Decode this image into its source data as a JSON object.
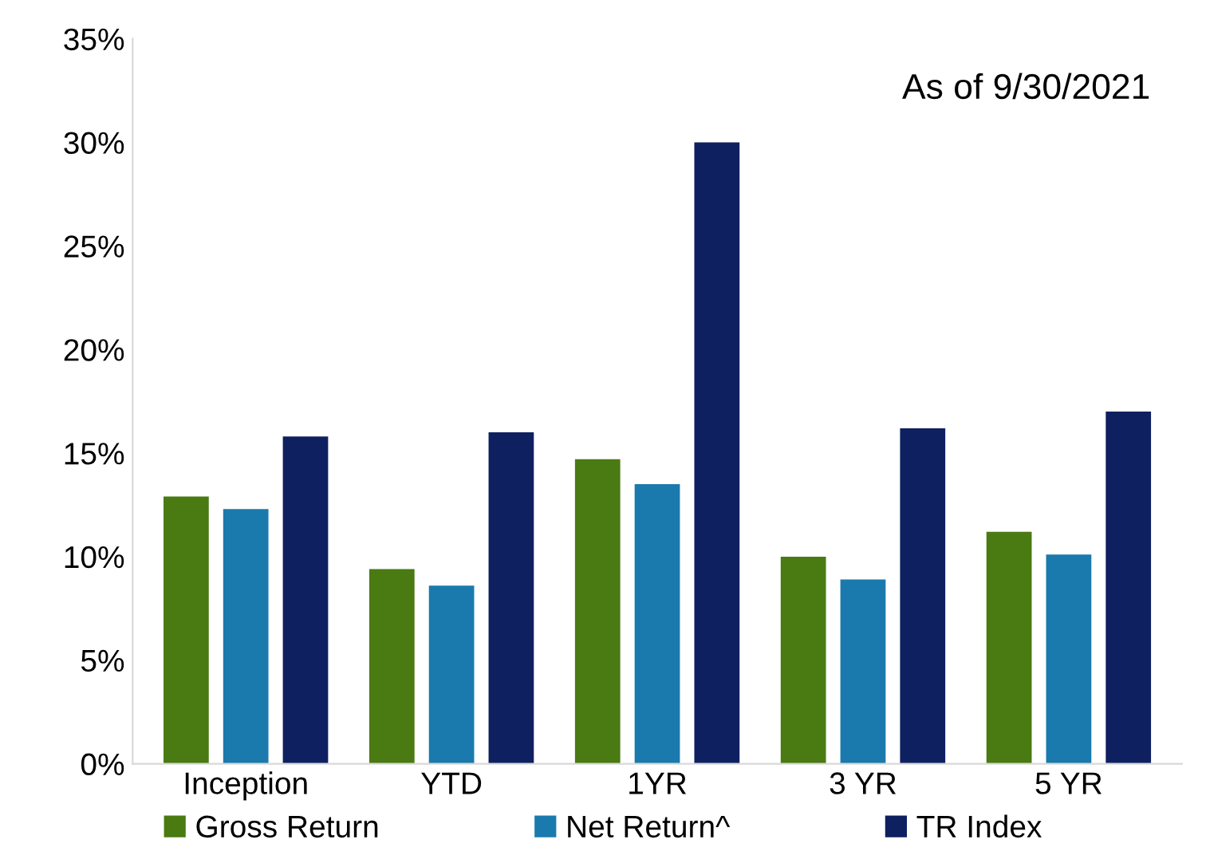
{
  "chart_data": {
    "type": "bar",
    "categories": [
      "Inception",
      "YTD",
      "1YR",
      "3 YR",
      "5 YR"
    ],
    "series": [
      {
        "name": "Gross Return",
        "color": "#4a7a12",
        "values": [
          12.9,
          9.4,
          14.7,
          10.0,
          11.2
        ]
      },
      {
        "name": "Net Return^",
        "color": "#1a7aad",
        "values": [
          12.3,
          8.6,
          13.5,
          8.9,
          10.1
        ]
      },
      {
        "name": "TR Index",
        "color": "#0f2060",
        "values": [
          15.8,
          16.0,
          30.0,
          16.2,
          17.0
        ]
      }
    ],
    "ylim": [
      0,
      35
    ],
    "yticks": [
      {
        "value": 0,
        "label": "0%"
      },
      {
        "value": 5,
        "label": "5%"
      },
      {
        "value": 10,
        "label": "10%"
      },
      {
        "value": 15,
        "label": "15%"
      },
      {
        "value": 20,
        "label": "20%"
      },
      {
        "value": 25,
        "label": "25%"
      },
      {
        "value": 30,
        "label": "30%"
      },
      {
        "value": 35,
        "label": "35%"
      }
    ],
    "annotations": [
      "As of 9/30/2021"
    ],
    "grid": false,
    "legend": "bottom"
  }
}
